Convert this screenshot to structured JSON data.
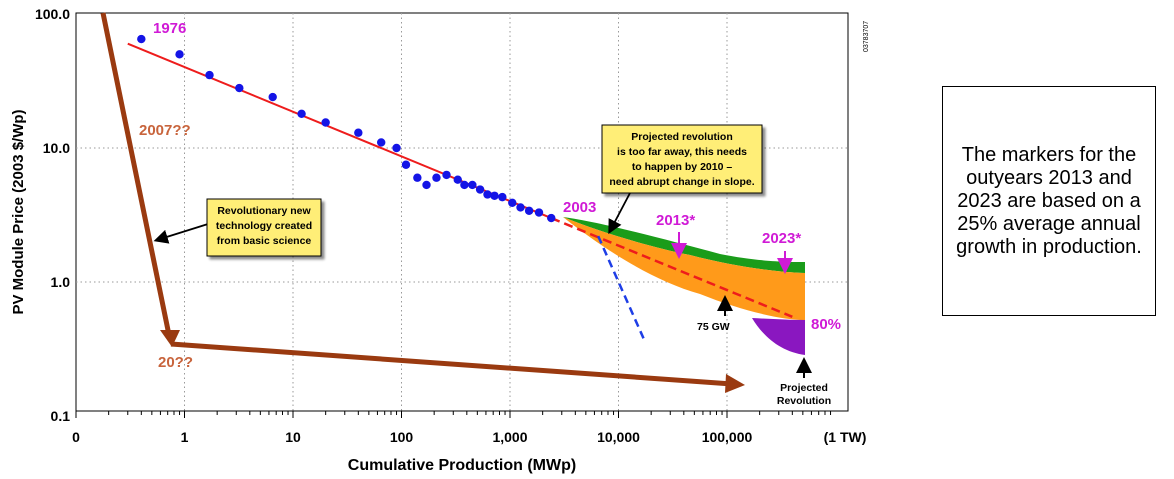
{
  "chart_data": {
    "type": "scatter",
    "title": "",
    "xlabel": "Cumulative Production (MWp)",
    "ylabel": "PV Module Price (2003 $/Wp)",
    "x_scale": "log",
    "y_scale": "log",
    "xlim": [
      0.1,
      500000
    ],
    "ylim": [
      0.1,
      100
    ],
    "x_ticks": [
      {
        "value": 0.1,
        "label": "0"
      },
      {
        "value": 1,
        "label": "1"
      },
      {
        "value": 10,
        "label": "10"
      },
      {
        "value": 100,
        "label": "100"
      },
      {
        "value": 1000,
        "label": "1,000"
      },
      {
        "value": 10000,
        "label": "10,000"
      },
      {
        "value": 100000,
        "label": "100,000"
      },
      {
        "value": 1000000,
        "label": "(1 TW)"
      }
    ],
    "y_ticks": [
      {
        "value": 100,
        "label": "100.0"
      },
      {
        "value": 10,
        "label": "10.0"
      },
      {
        "value": 1,
        "label": "1.0"
      },
      {
        "value": 0.1,
        "label": "0.1"
      }
    ],
    "grid": true,
    "series": [
      {
        "points": [
          [
            0.4,
            65
          ],
          [
            0.9,
            50
          ],
          [
            1.7,
            35
          ],
          [
            3.2,
            28
          ],
          [
            6.5,
            24
          ],
          [
            12,
            18
          ],
          [
            20,
            15.5
          ],
          [
            40,
            13
          ],
          [
            65,
            11
          ],
          [
            90,
            10
          ],
          [
            110,
            7.5
          ],
          [
            140,
            6
          ],
          [
            170,
            5.3
          ],
          [
            210,
            6
          ],
          [
            260,
            6.3
          ],
          [
            330,
            5.8
          ],
          [
            380,
            5.3
          ],
          [
            450,
            5.3
          ],
          [
            530,
            4.9
          ],
          [
            620,
            4.5
          ],
          [
            720,
            4.4
          ],
          [
            850,
            4.3
          ],
          [
            1050,
            3.9
          ],
          [
            1250,
            3.6
          ],
          [
            1500,
            3.4
          ],
          [
            1850,
            3.3
          ],
          [
            2400,
            3.0
          ]
        ]
      }
    ],
    "trend_lines": [
      {
        "points": [
          [
            0.3,
            60
          ],
          [
            2400,
            3.0
          ]
        ]
      },
      {
        "points": [
          [
            2400,
            3.0
          ],
          [
            400000,
            0.55
          ]
        ]
      },
      {
        "points": [
          [
            6500,
            2.2
          ],
          [
            17000,
            0.38
          ]
        ]
      }
    ],
    "bands": [
      {
        "color": "#1a9c1a"
      },
      {
        "color": "#ff9a1a"
      },
      {
        "color": "#8a17c0"
      }
    ],
    "annotations": {
      "label_1976": "1976",
      "label_2003": "2003",
      "label_2013": "2013*",
      "label_2023": "2023*",
      "label_80": "80%",
      "label_2007": "2007??",
      "label_20": "20??",
      "label_75gw": "75 GW",
      "projected_rev_line1": "Projected",
      "projected_rev_line2": "Revolution",
      "callout_revolutionary": [
        "Revolutionary new",
        "technology created",
        "from basic science"
      ],
      "callout_projected": [
        "Projected revolution",
        "is too far away, this needs",
        "to happen by 2010 –",
        "need abrupt change in slope."
      ],
      "figure_id": "03783707"
    },
    "colors": {
      "points": "#1414e6",
      "red_line": "#ee1c1c",
      "blue_dash": "#1e3ee6",
      "magenta": "#d01ad6",
      "brown_arrow": "#9a3a10",
      "brown_text": "#c8643c",
      "callout_fill": "#ffee77"
    }
  },
  "note": {
    "text": "The markers for the outyears 2013 and 2023 are based on a 25% average annual growth in production."
  }
}
